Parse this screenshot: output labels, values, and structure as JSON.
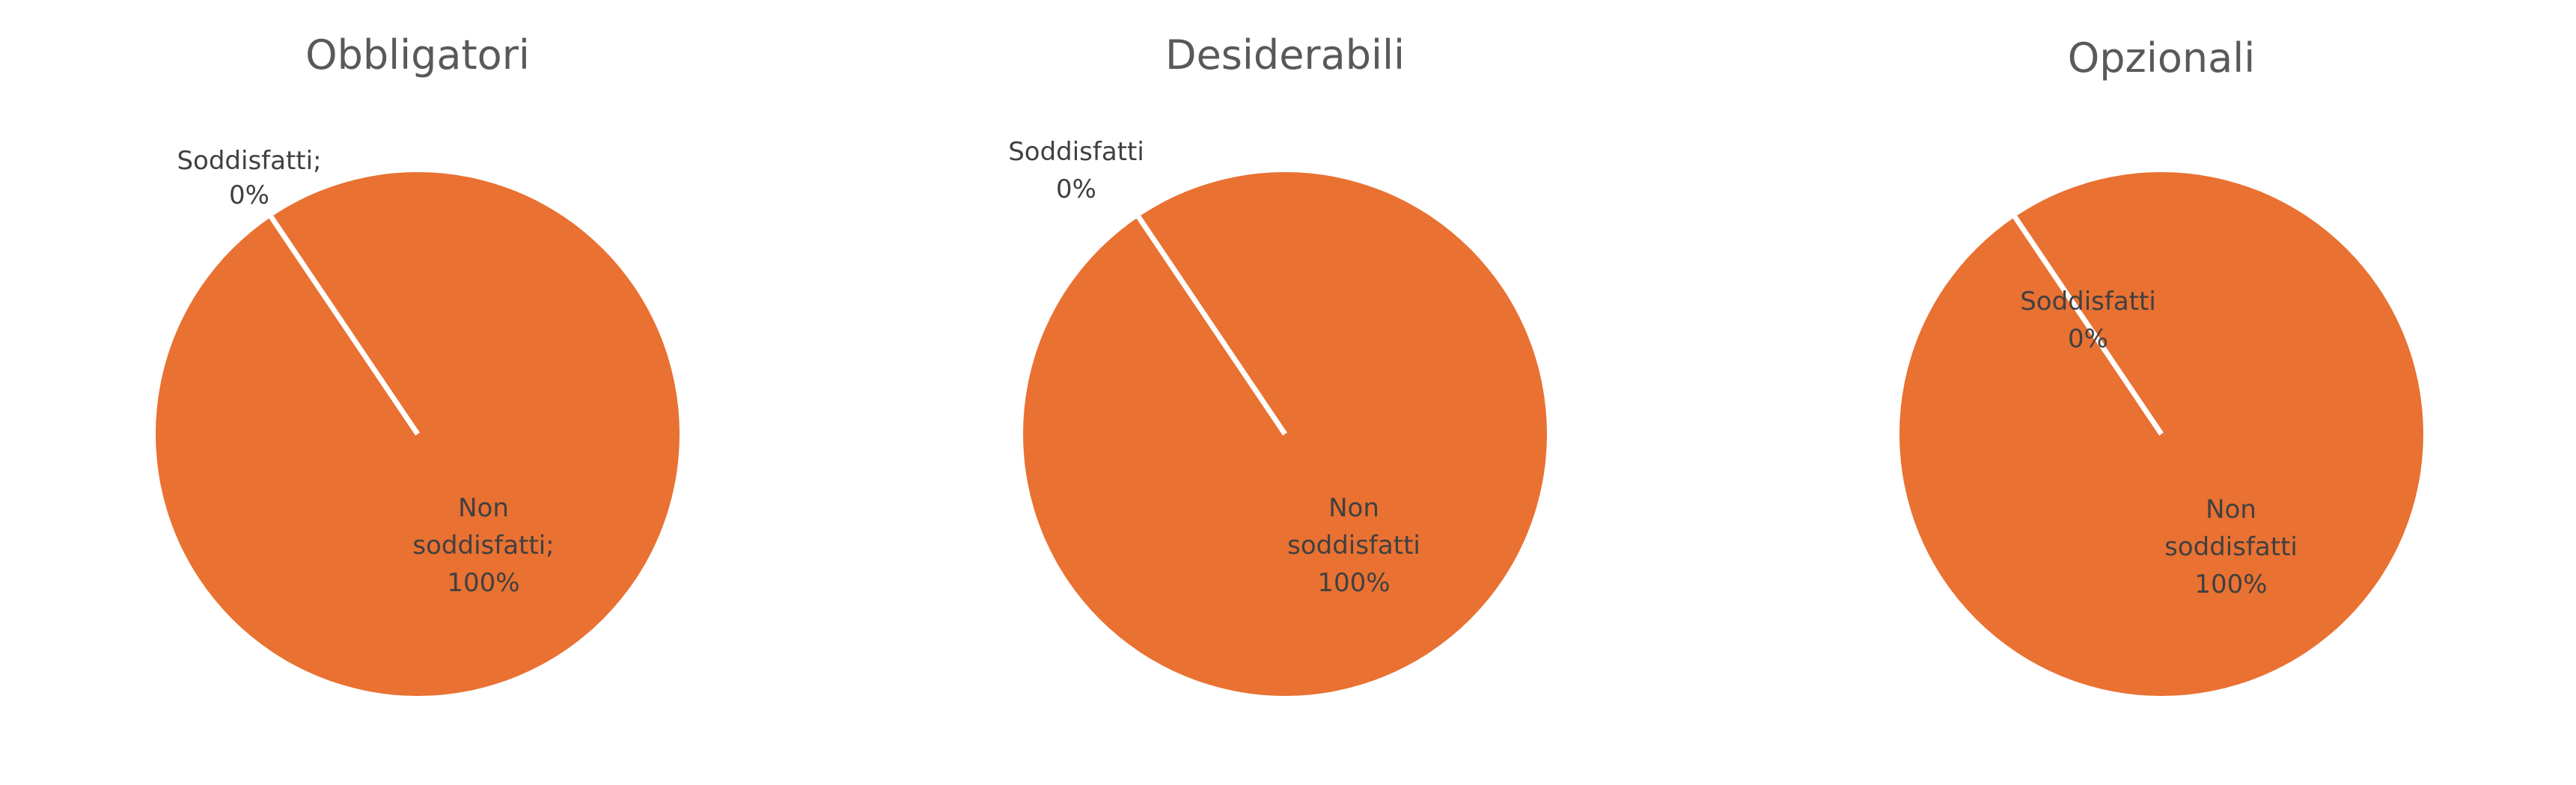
{
  "colors": {
    "non_soddisfatti": "#E97132",
    "soddisfatti": "#156082",
    "separator": "#ffffff",
    "title_text": "#595959",
    "label_text": "#404040"
  },
  "chart_data": [
    {
      "type": "pie",
      "title": "Obbligatori",
      "slices": [
        {
          "name": "Soddisfatti",
          "value": 0
        },
        {
          "name": "Non soddisfatti",
          "value": 100
        }
      ],
      "labels": [
        {
          "lines": [
            "Soddisfatti;",
            "0%"
          ]
        },
        {
          "lines": [
            "Non",
            "soddisfatti;",
            "100%"
          ]
        }
      ],
      "start_angle_deg": -34,
      "legend": "none"
    },
    {
      "type": "pie",
      "title": "Desiderabili",
      "slices": [
        {
          "name": "Soddisfatti",
          "value": 0
        },
        {
          "name": "Non soddisfatti",
          "value": 100
        }
      ],
      "labels": [
        {
          "lines": [
            "Soddisfatti",
            "0%"
          ]
        },
        {
          "lines": [
            "Non",
            "soddisfatti",
            "100%"
          ]
        }
      ],
      "start_angle_deg": -34,
      "legend": "none"
    },
    {
      "type": "pie",
      "title": "Opzionali",
      "slices": [
        {
          "name": "Soddisfatti",
          "value": 0
        },
        {
          "name": "Non soddisfatti",
          "value": 100
        }
      ],
      "labels": [
        {
          "lines": [
            "Soddisfatti",
            "0%"
          ]
        },
        {
          "lines": [
            "Non",
            "soddisfatti",
            "100%"
          ]
        }
      ],
      "start_angle_deg": -34,
      "legend": "none"
    }
  ]
}
